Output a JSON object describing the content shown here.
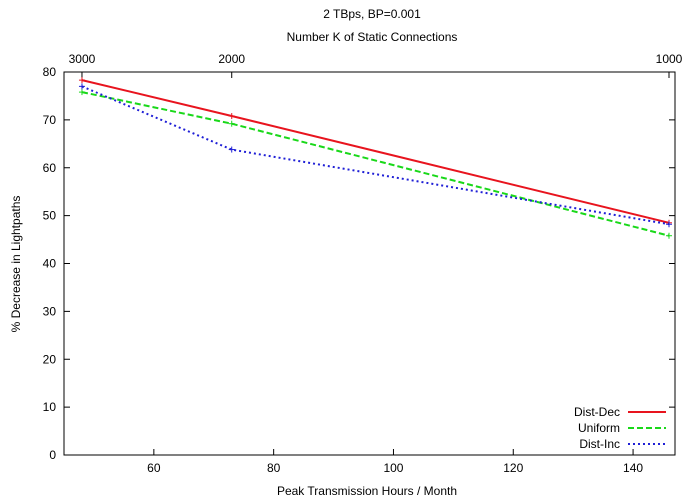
{
  "chart_data": {
    "type": "line",
    "title": "2 TBps, BP=0.001",
    "top_axis_title": "Number K of Static Connections",
    "top_ticks": [
      {
        "x": 48,
        "label": "3000"
      },
      {
        "x": 73,
        "label": "2000"
      },
      {
        "x": 146,
        "label": "1000"
      }
    ],
    "xlabel": "Peak Transmission Hours / Month",
    "ylabel": "% Decrease in Lightpaths",
    "xlim": [
      45,
      147
    ],
    "ylim": [
      0,
      80
    ],
    "xticks": [
      60,
      80,
      100,
      120,
      140
    ],
    "yticks": [
      0,
      10,
      20,
      30,
      40,
      50,
      60,
      70,
      80
    ],
    "grid": false,
    "legend_position": "bottom-right",
    "series": [
      {
        "name": "Dist-Dec",
        "color": "#e8141e",
        "dash": "solid",
        "x": [
          48,
          73,
          146
        ],
        "y": [
          78.3,
          70.8,
          48.5
        ]
      },
      {
        "name": "Uniform",
        "color": "#19d819",
        "dash": "dashed",
        "x": [
          48,
          73,
          146
        ],
        "y": [
          75.8,
          69.2,
          45.8
        ]
      },
      {
        "name": "Dist-Inc",
        "color": "#1f1fd6",
        "dash": "dotted",
        "x": [
          48,
          73,
          146
        ],
        "y": [
          77.0,
          63.8,
          48.2
        ]
      }
    ]
  }
}
